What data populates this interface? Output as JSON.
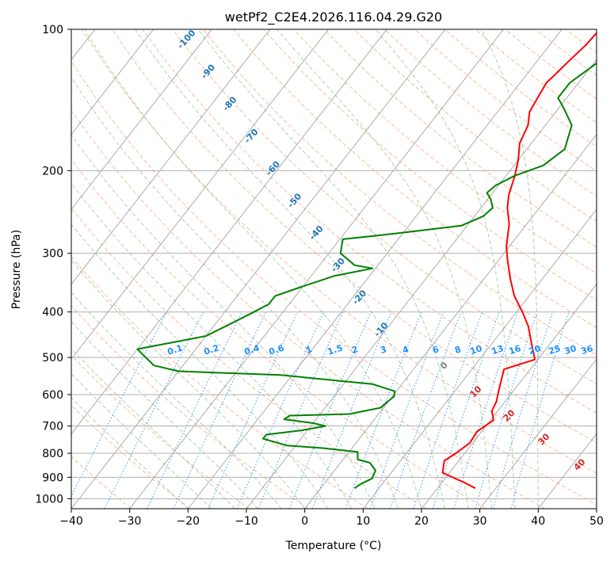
{
  "chart_data": {
    "type": "line",
    "title": "wetPf2_C2E4.2026.116.04.29.G20",
    "xlabel": "Temperature (°C)",
    "ylabel": "Pressure (hPa)",
    "xlim": [
      -40,
      50
    ],
    "ylim": [
      1050,
      100
    ],
    "y_scale": "log",
    "x_ticks": [
      -40,
      -30,
      -20,
      -10,
      0,
      10,
      20,
      30,
      40,
      50
    ],
    "y_ticks": [
      100,
      200,
      300,
      400,
      500,
      600,
      700,
      800,
      900,
      1000
    ],
    "grid": true,
    "colors": {
      "temperature": "#ff0000",
      "dewpoint": "#008000",
      "dry_adiabats": "#ffa07a",
      "moist_adiabats": "#8fbc8f",
      "mixing_ratio": "#1e90ff",
      "isotherms": "#999999",
      "dry_adiabat_labels": "#d62728",
      "moist_adiabat_labels": "#1f77b4"
    },
    "series": [
      {
        "key": "temperature",
        "points": [
          [
            26.5,
            950
          ],
          [
            24,
            925
          ],
          [
            18.8,
            880
          ],
          [
            17.5,
            830
          ],
          [
            18.5,
            800
          ],
          [
            19.5,
            760
          ],
          [
            19.2,
            720
          ],
          [
            20.5,
            680
          ],
          [
            19,
            650
          ],
          [
            18.5,
            620
          ],
          [
            17.5,
            590
          ],
          [
            15.5,
            530
          ],
          [
            19.5,
            505
          ],
          [
            17,
            470
          ],
          [
            14,
            430
          ],
          [
            11,
            400
          ],
          [
            7.5,
            370
          ],
          [
            4.5,
            340
          ],
          [
            1.5,
            310
          ],
          [
            -0.5,
            290
          ],
          [
            -3,
            260
          ],
          [
            -5.5,
            240
          ],
          [
            -7,
            225
          ],
          [
            -8.5,
            205
          ],
          [
            -10,
            190
          ],
          [
            -12,
            175
          ],
          [
            -13,
            160
          ],
          [
            -14.5,
            150
          ],
          [
            -15,
            140
          ],
          [
            -15.5,
            130
          ],
          [
            -15,
            123
          ],
          [
            -14.5,
            116
          ],
          [
            -13.8,
            108
          ],
          [
            -13.5,
            100
          ]
        ]
      },
      {
        "key": "dewpoint",
        "points": [
          [
            5.8,
            950
          ],
          [
            6.3,
            930
          ],
          [
            7.5,
            905
          ],
          [
            7,
            870
          ],
          [
            5,
            838
          ],
          [
            2.5,
            825
          ],
          [
            1.5,
            795
          ],
          [
            -5,
            780
          ],
          [
            -11.5,
            770
          ],
          [
            -16.5,
            745
          ],
          [
            -16.5,
            730
          ],
          [
            -11,
            715
          ],
          [
            -7.5,
            700
          ],
          [
            -10,
            690
          ],
          [
            -15.5,
            677
          ],
          [
            -15,
            665
          ],
          [
            -5,
            660
          ],
          [
            -0.5,
            640
          ],
          [
            -0.2,
            625
          ],
          [
            0.3,
            605
          ],
          [
            -0.3,
            590
          ],
          [
            -5,
            570
          ],
          [
            -22,
            545
          ],
          [
            -40,
            535
          ],
          [
            -45,
            520
          ],
          [
            -50,
            480
          ],
          [
            -40,
            450
          ],
          [
            -37,
            420
          ],
          [
            -35,
            400
          ],
          [
            -33.5,
            385
          ],
          [
            -33.5,
            370
          ],
          [
            -30.5,
            355
          ],
          [
            -26,
            335
          ],
          [
            -20.5,
            323
          ],
          [
            -24,
            318
          ],
          [
            -28,
            300
          ],
          [
            -29.5,
            280
          ],
          [
            -24,
            275
          ],
          [
            -17,
            268
          ],
          [
            -11,
            262
          ],
          [
            -8.5,
            250
          ],
          [
            -8,
            240
          ],
          [
            -9.5,
            230
          ],
          [
            -11,
            223
          ],
          [
            -10.5,
            215
          ],
          [
            -8.5,
            205
          ],
          [
            -5,
            195
          ],
          [
            -3.5,
            180
          ],
          [
            -5.5,
            160
          ],
          [
            -9.5,
            146
          ],
          [
            -11.5,
            140
          ],
          [
            -11.5,
            130
          ],
          [
            -9.5,
            118
          ],
          [
            -6,
            108
          ],
          [
            -3.5,
            100
          ]
        ]
      }
    ],
    "moist_adiabat_labels": [
      "-100",
      "-90",
      "-80",
      "-70",
      "-60",
      "-50",
      "-40",
      "-30",
      "-20",
      "-10"
    ],
    "dry_adiabat_labels": [
      "0",
      "10",
      "20",
      "30",
      "40"
    ],
    "mixing_ratio_labels": [
      "0.1",
      "0.2",
      "0.4",
      "0.6",
      "1",
      "1.5",
      "2",
      "3",
      "4",
      "6",
      "8",
      "10",
      "13",
      "16",
      "20",
      "25",
      "30",
      "36"
    ]
  }
}
